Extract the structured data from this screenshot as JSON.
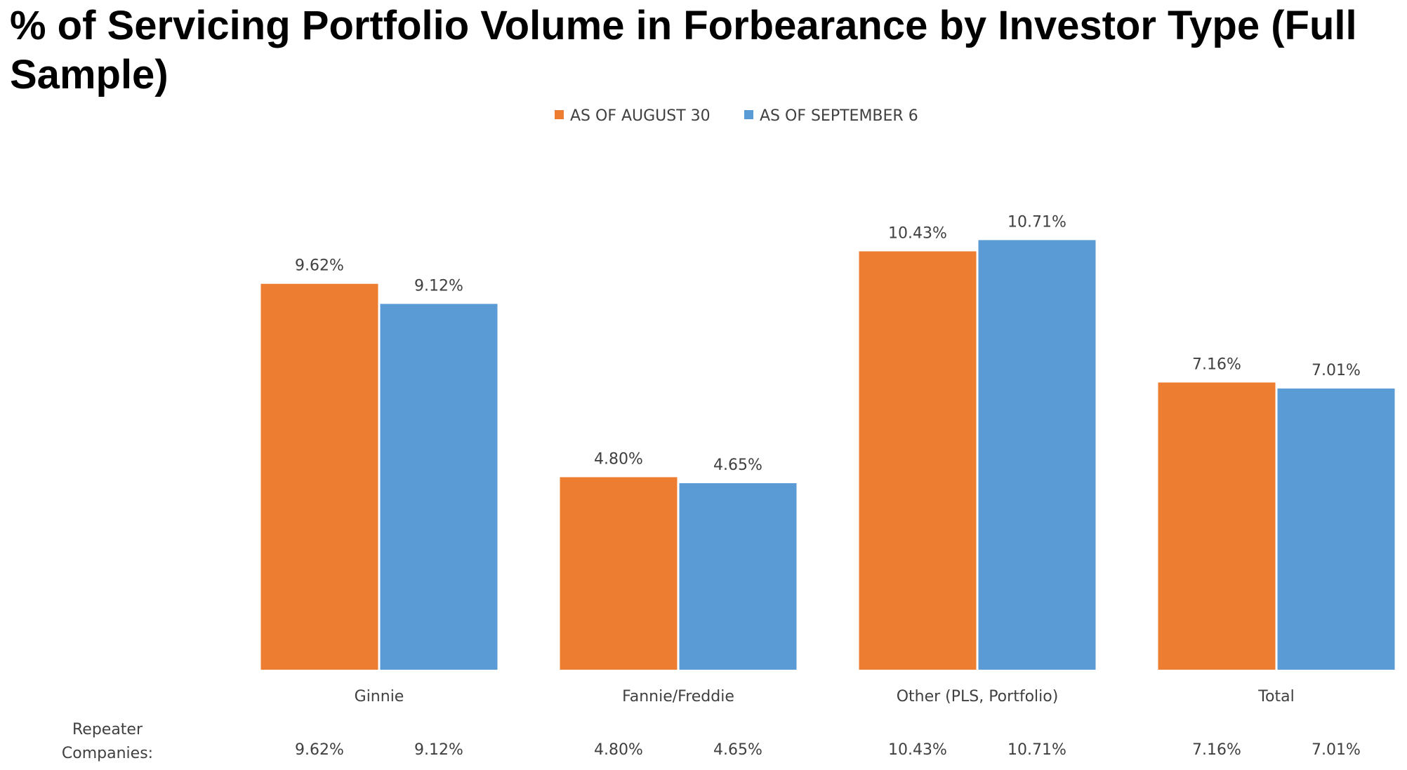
{
  "chart_data": {
    "type": "bar",
    "title": "% of Servicing Portfolio Volume in Forbearance by Investor Type (Full Sample)",
    "categories": [
      "Ginnie",
      "Fannie/Freddie",
      "Other (PLS, Portfolio)",
      "Total"
    ],
    "series": [
      {
        "name": "AS OF AUGUST 30",
        "color": "#ED7D31",
        "values": [
          9.62,
          4.8,
          10.43,
          7.16
        ],
        "labels": [
          "9.62%",
          "4.80%",
          "10.43%",
          "7.16%"
        ]
      },
      {
        "name": "AS OF SEPTEMBER 6",
        "color": "#5B9BD5",
        "values": [
          9.12,
          4.65,
          10.71,
          7.01
        ],
        "labels": [
          "9.12%",
          "4.65%",
          "10.71%",
          "7.01%"
        ]
      }
    ],
    "ylim": [
      0,
      12
    ],
    "grid": false,
    "legend_position": "top-center",
    "table_row": {
      "label_line1": "Repeater",
      "label_line2": "Companies:",
      "values": [
        [
          "9.62%",
          "9.12%"
        ],
        [
          "4.80%",
          "4.65%"
        ],
        [
          "10.43%",
          "10.71%"
        ],
        [
          "7.16%",
          "7.01%"
        ]
      ]
    }
  }
}
